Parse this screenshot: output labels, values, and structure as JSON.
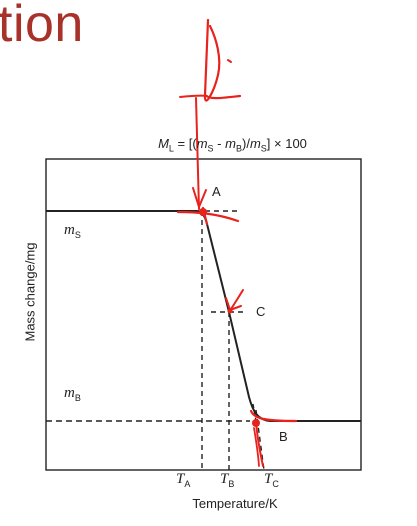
{
  "slide": {
    "title_fragment": "tion"
  },
  "figure": {
    "formula": {
      "ml_sym": "M",
      "ml_sub": "L",
      "eq_open": " = [(",
      "ms_sym": "m",
      "ms_sub": "S",
      "minus": " - ",
      "mb_sym": "m",
      "mb_sub": "B",
      "div_close": ")/",
      "ms2_sym": "m",
      "ms2_sub": "S",
      "tail": "] × 100"
    },
    "y_axis_label": "Mass change/mg",
    "x_axis_label": "Temperature/K",
    "level_labels": {
      "ms_sym": "m",
      "ms_sub": "S",
      "mb_sym": "m",
      "mb_sub": "B"
    },
    "points": {
      "a": "A",
      "b": "B",
      "c": "C"
    },
    "ticks": {
      "ta_sym": "T",
      "ta_sub": "A",
      "tb_sym": "T",
      "tb_sub": "B",
      "tc_sym": "T",
      "tc_sub": "C"
    }
  },
  "colors": {
    "annotation": "#e8221c",
    "title": "#a8322a",
    "ink": "#222222"
  }
}
